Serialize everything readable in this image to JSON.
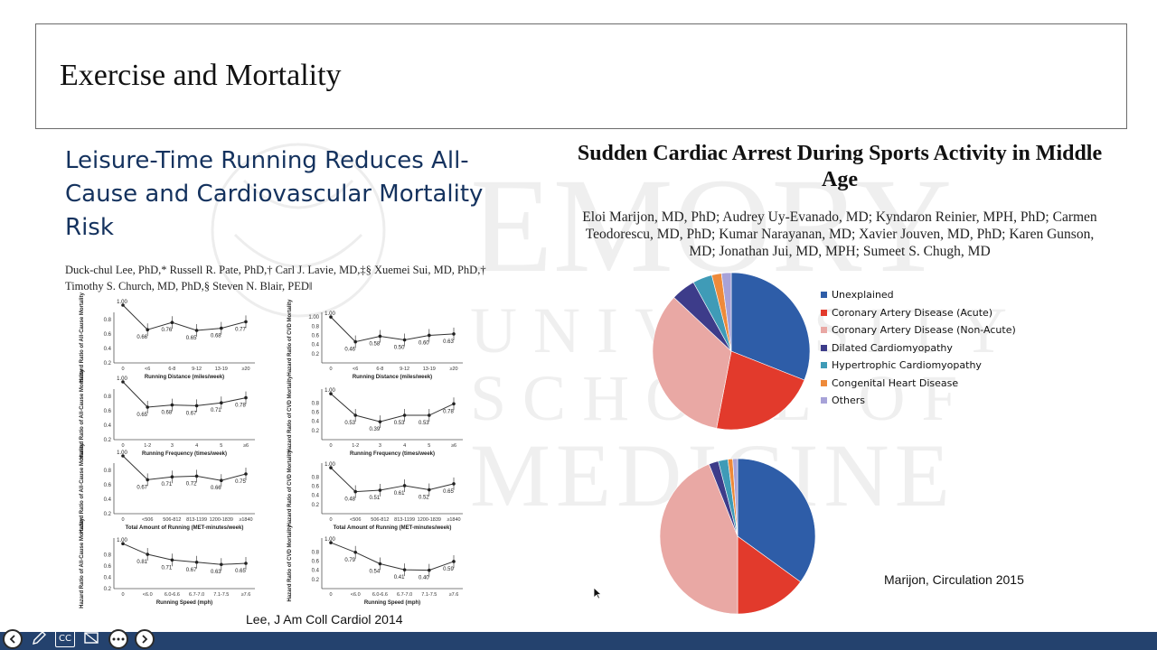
{
  "slide_title": "Exercise and Mortality",
  "left": {
    "heading": "Leisure-Time Running Reduces All-Cause and Cardiovascular Mortality Risk",
    "authors_line1": "Duck-chul Lee, PhD,* Russell R. Pate, PhD,† Carl J. Lavie, MD,‡§ Xuemei Sui, MD, PhD,†",
    "authors_line2": "Timothy S. Church, MD, PhD,§ Steven N. Blair, PED‖",
    "citation": "Lee, J Am Coll Cardiol 2014"
  },
  "right": {
    "title": "Sudden Cardiac Arrest During Sports Activity in Middle Age",
    "authors": "Eloi Marijon, MD, PhD; Audrey Uy-Evanado, MD; Kyndaron Reinier, MPH, PhD; Carmen Teodorescu, MD, PhD; Kumar Narayanan, MD; Xavier Jouven, MD, PhD; Karen Gunson, MD; Jonathan Jui, MD, MPH; Sumeet S. Chugh, MD",
    "citation": "Marijon, Circulation 2015"
  },
  "watermark": {
    "line1": "EMORY",
    "line2": "UNIVERSITY",
    "line3": "SCHOOL OF",
    "line4": "MEDICINE"
  },
  "toolbar": {
    "back_icon": "arrow-left-icon",
    "pen_icon": "pen-icon",
    "cc_label": "CC",
    "screen_icon": "screen-icon",
    "more_icon": "ellipsis-icon",
    "next_icon": "arrow-right-icon"
  },
  "chart_data": [
    {
      "type": "line",
      "title": "",
      "ylabel": "Hazard Ratio of All-Cause Mortality",
      "xlabel": "Running Distance (miles/week)",
      "categories": [
        "0",
        "<6",
        "6-8",
        "9-12",
        "13-19",
        "≥20"
      ],
      "values": [
        1.0,
        0.66,
        0.76,
        0.65,
        0.68,
        0.77
      ],
      "labels": [
        "1.00",
        "0.66",
        "0.76",
        "0.65",
        "0.68",
        "0.77"
      ],
      "ylim": [
        0.2,
        0.9
      ],
      "yticks": [
        "0.8",
        "0.6",
        "0.4",
        "0.2"
      ]
    },
    {
      "type": "line",
      "title": "",
      "ylabel": "Hazard Ratio of CVD Mortality",
      "xlabel": "Running Distance (miles/week)",
      "categories": [
        "0",
        "<6",
        "6-8",
        "9-12",
        "13-19",
        "≥20"
      ],
      "values": [
        1.0,
        0.46,
        0.58,
        0.5,
        0.6,
        0.63
      ],
      "labels": [
        "1.00",
        "0.46",
        "0.58",
        "0.50",
        "0.60",
        "0.63"
      ],
      "ylim": [
        0.0,
        1.1
      ],
      "yticks": [
        "1.00",
        "0.8",
        "0.6",
        "0.4",
        "0.2"
      ]
    },
    {
      "type": "line",
      "title": "",
      "ylabel": "Hazard Ratio of All-Cause Mortality",
      "xlabel": "Running Frequency (times/week)",
      "categories": [
        "0",
        "1-2",
        "3",
        "4",
        "5",
        "≥6"
      ],
      "values": [
        1.0,
        0.65,
        0.68,
        0.67,
        0.71,
        0.78
      ],
      "labels": [
        "1.00",
        "0.65",
        "0.68",
        "0.67",
        "0.71",
        "0.78"
      ],
      "ylim": [
        0.2,
        0.9
      ],
      "yticks": [
        "0.8",
        "0.6",
        "0.4",
        "0.2"
      ]
    },
    {
      "type": "line",
      "title": "",
      "ylabel": "Hazard Ratio of CVD Mortality",
      "xlabel": "Running Frequency (times/week)",
      "categories": [
        "0",
        "1-2",
        "3",
        "4",
        "5",
        "≥6"
      ],
      "values": [
        1.0,
        0.53,
        0.39,
        0.53,
        0.53,
        0.78
      ],
      "labels": [
        "1.00",
        "0.53",
        "0.39",
        "0.53",
        "0.53",
        "0.78"
      ],
      "ylim": [
        0.0,
        1.1
      ],
      "yticks": [
        "0.8",
        "0.6",
        "0.4",
        "0.2"
      ]
    },
    {
      "type": "line",
      "title": "",
      "ylabel": "Hazard Ratio of All-Cause Mortality",
      "xlabel": "Total Amount of Running (MET-minutes/week)",
      "categories": [
        "0",
        "<506",
        "506-812",
        "813-1199",
        "1200-1839",
        "≥1840"
      ],
      "values": [
        1.0,
        0.67,
        0.71,
        0.72,
        0.66,
        0.75
      ],
      "labels": [
        "1.00",
        "0.67",
        "0.71",
        "0.72",
        "0.66",
        "0.75"
      ],
      "ylim": [
        0.2,
        0.9
      ],
      "yticks": [
        "0.8",
        "0.6",
        "0.4",
        "0.2"
      ]
    },
    {
      "type": "line",
      "title": "",
      "ylabel": "Hazard Ratio of CVD Mortality",
      "xlabel": "Total Amount of Running (MET-minutes/week)",
      "categories": [
        "0",
        "<506",
        "506-812",
        "813-1199",
        "1200-1839",
        "≥1840"
      ],
      "values": [
        1.0,
        0.48,
        0.51,
        0.61,
        0.52,
        0.65
      ],
      "labels": [
        "1.00",
        "0.48",
        "0.51",
        "0.61",
        "0.52",
        "0.65"
      ],
      "ylim": [
        0.0,
        1.1
      ],
      "yticks": [
        "0.8",
        "0.6",
        "0.4",
        "0.2"
      ]
    },
    {
      "type": "line",
      "title": "",
      "ylabel": "Hazard Ratio of All-Cause Mortality",
      "xlabel": "Running Speed (mph)",
      "categories": [
        "0",
        "<6.0",
        "6.0-6.6",
        "6.7-7.0",
        "7.1-7.5",
        "≥7.6"
      ],
      "values": [
        1.0,
        0.81,
        0.71,
        0.67,
        0.63,
        0.65
      ],
      "labels": [
        "1.00",
        "0.81",
        "0.71",
        "0.67",
        "0.63",
        "0.65"
      ],
      "ylim": [
        0.2,
        1.1
      ],
      "yticks": [
        "0.8",
        "0.6",
        "0.4",
        "0.2"
      ]
    },
    {
      "type": "line",
      "title": "",
      "ylabel": "Hazard Ratio of CVD Mortality",
      "xlabel": "Running Speed (mph)",
      "categories": [
        "0",
        "<6.0",
        "6.0-6.6",
        "6.7-7.0",
        "7.1-7.5",
        "≥7.6"
      ],
      "values": [
        1.0,
        0.79,
        0.54,
        0.41,
        0.4,
        0.59
      ],
      "labels": [
        "1.00",
        "0.79",
        "0.54",
        "0.41",
        "0.40",
        "0.59"
      ],
      "ylim": [
        0.0,
        1.1
      ],
      "yticks": [
        "0.8",
        "0.6",
        "0.4",
        "0.2"
      ]
    },
    {
      "type": "pie",
      "title": "",
      "categories": [
        "Unexplained",
        "Coronary Artery Disease (Acute)",
        "Coronary Artery Disease (Non-Acute)",
        "Dilated Cardiomyopathy",
        "Hypertrophic Cardiomyopathy",
        "Congenital Heart Disease",
        "Others"
      ],
      "values": [
        31,
        22,
        34,
        5,
        4,
        2,
        2
      ],
      "colors": [
        "#2e5da8",
        "#e23a2c",
        "#e9a8a4",
        "#3d3c8a",
        "#3f9bb7",
        "#ee8a3a",
        "#a7a2d8"
      ],
      "legend": "right"
    },
    {
      "type": "pie",
      "title": "",
      "categories": [
        "Unexplained",
        "Coronary Artery Disease (Acute)",
        "Coronary Artery Disease (Non-Acute)",
        "Dilated Cardiomyopathy",
        "Hypertrophic Cardiomyopathy",
        "Congenital Heart Disease",
        "Others"
      ],
      "values": [
        35,
        15,
        44,
        2,
        2,
        1,
        1
      ],
      "colors": [
        "#2e5da8",
        "#e23a2c",
        "#e9a8a4",
        "#3d3c8a",
        "#3f9bb7",
        "#ee8a3a",
        "#a7a2d8"
      ]
    }
  ]
}
